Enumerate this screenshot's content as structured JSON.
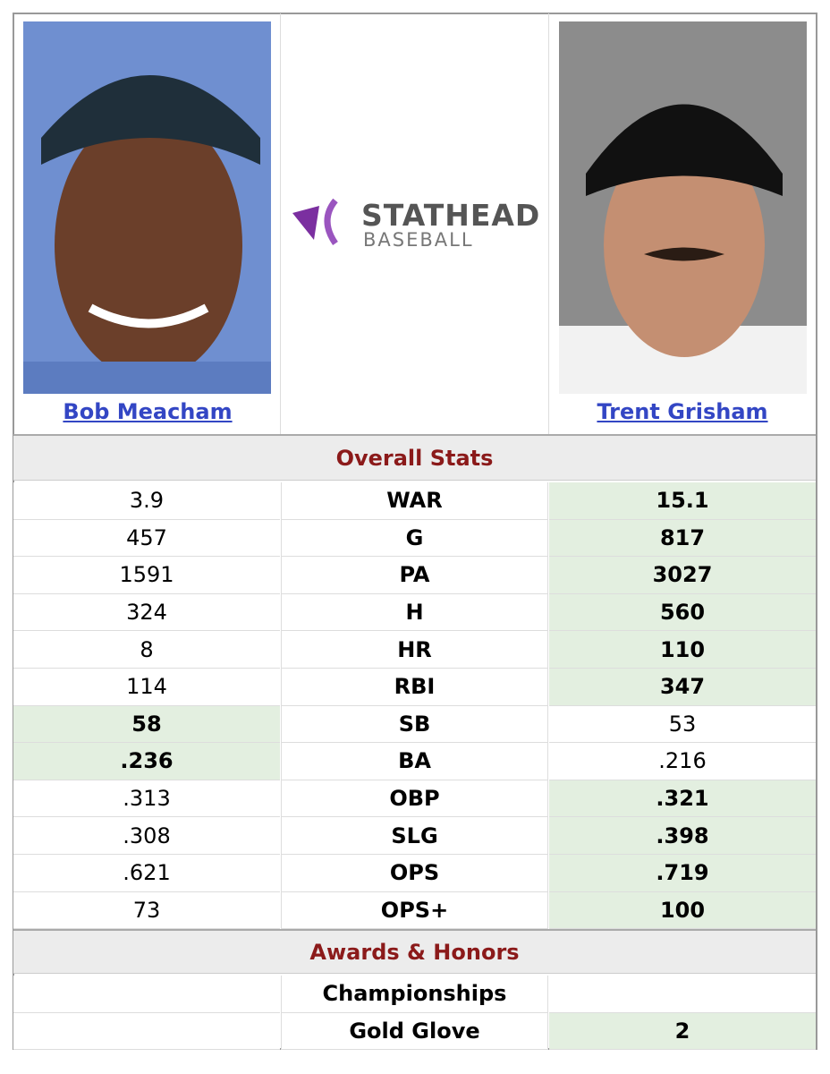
{
  "players": [
    {
      "name": "Bob Meacham"
    },
    {
      "name": "Trent Grisham"
    }
  ],
  "logo": {
    "line1": "STATHEAD",
    "line2": "BASEBALL"
  },
  "stats": {
    "title": "Overall Stats",
    "rows": [
      {
        "left": "3.9",
        "label": "WAR",
        "right": "15.1",
        "highlight": "right"
      },
      {
        "left": "457",
        "label": "G",
        "right": "817",
        "highlight": "right"
      },
      {
        "left": "1591",
        "label": "PA",
        "right": "3027",
        "highlight": "right"
      },
      {
        "left": "324",
        "label": "H",
        "right": "560",
        "highlight": "right"
      },
      {
        "left": "8",
        "label": "HR",
        "right": "110",
        "highlight": "right"
      },
      {
        "left": "114",
        "label": "RBI",
        "right": "347",
        "highlight": "right"
      },
      {
        "left": "58",
        "label": "SB",
        "right": "53",
        "highlight": "left"
      },
      {
        "left": ".236",
        "label": "BA",
        "right": ".216",
        "highlight": "left"
      },
      {
        "left": ".313",
        "label": "OBP",
        "right": ".321",
        "highlight": "right"
      },
      {
        "left": ".308",
        "label": "SLG",
        "right": ".398",
        "highlight": "right"
      },
      {
        "left": ".621",
        "label": "OPS",
        "right": ".719",
        "highlight": "right"
      },
      {
        "left": "73",
        "label": "OPS+",
        "right": "100",
        "highlight": "right"
      }
    ]
  },
  "awards": {
    "title": "Awards & Honors",
    "rows": [
      {
        "left": null,
        "label": "Championships",
        "right": null,
        "highlight": null
      },
      {
        "left": null,
        "label": "Gold Glove",
        "right": "2",
        "highlight": "right"
      }
    ]
  }
}
